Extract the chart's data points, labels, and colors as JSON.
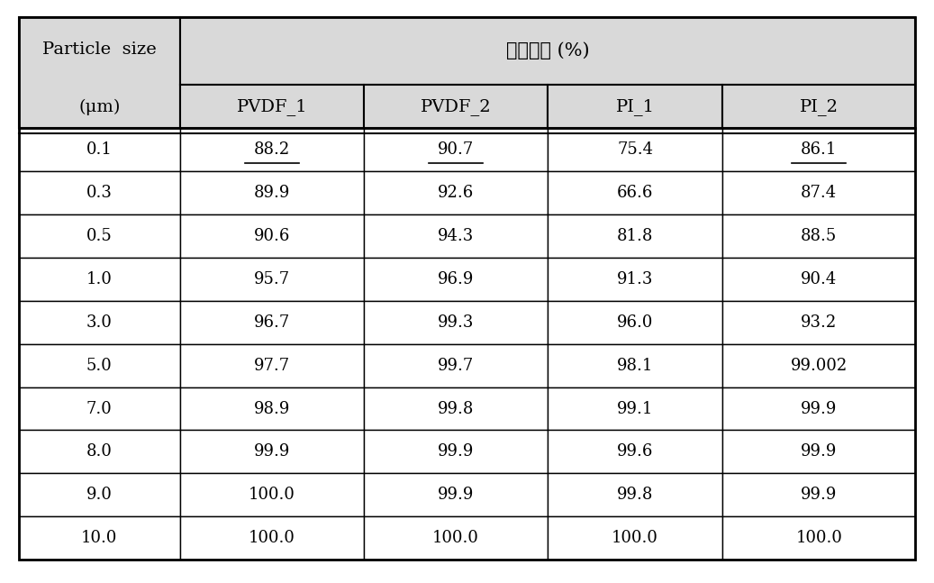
{
  "header_top": "제거효율 (%)",
  "col0_line1": "Particle  size",
  "col0_line2": "(μm)",
  "sub_headers": [
    "PVDF_1",
    "PVDF_2",
    "PI_1",
    "PI_2"
  ],
  "rows": [
    [
      "0.1",
      "88.2",
      "90.7",
      "75.4",
      "86.1"
    ],
    [
      "0.3",
      "89.9",
      "92.6",
      "66.6",
      "87.4"
    ],
    [
      "0.5",
      "90.6",
      "94.3",
      "81.8",
      "88.5"
    ],
    [
      "1.0",
      "95.7",
      "96.9",
      "91.3",
      "90.4"
    ],
    [
      "3.0",
      "96.7",
      "99.3",
      "96.0",
      "93.2"
    ],
    [
      "5.0",
      "97.7",
      "99.7",
      "98.1",
      "99.002"
    ],
    [
      "7.0",
      "98.9",
      "99.8",
      "99.1",
      "99.9"
    ],
    [
      "8.0",
      "99.9",
      "99.9",
      "99.6",
      "99.9"
    ],
    [
      "9.0",
      "100.0",
      "99.9",
      "99.8",
      "99.9"
    ],
    [
      "10.0",
      "100.0",
      "100.0",
      "100.0",
      "100.0"
    ]
  ],
  "underlined_cells": [
    [
      0,
      1
    ],
    [
      0,
      2
    ],
    [
      0,
      4
    ]
  ],
  "header_bg": "#d9d9d9",
  "table_bg": "#ffffff",
  "border_color": "#000000",
  "text_color": "#000000",
  "font_size": 13,
  "header_font_size": 14
}
